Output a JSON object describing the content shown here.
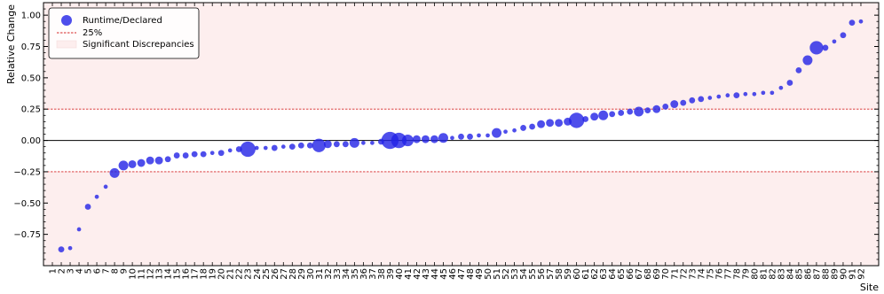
{
  "chart_data": {
    "type": "scatter",
    "xlabel": "Site",
    "ylabel": "Relative Change",
    "ylim": [
      -1.0,
      1.1
    ],
    "xlim": [
      0,
      94
    ],
    "yticks": [
      -0.75,
      -0.5,
      -0.25,
      0.0,
      0.25,
      0.5,
      0.75,
      1.0
    ],
    "ytick_labels": [
      "−0.75",
      "−0.50",
      "−0.25",
      "0.00",
      "0.25",
      "0.50",
      "0.75",
      "1.00"
    ],
    "x_categories": [
      "1",
      "2",
      "3",
      "4",
      "5",
      "6",
      "7",
      "8",
      "9",
      "10",
      "11",
      "12",
      "13",
      "14",
      "15",
      "16",
      "17",
      "18",
      "19",
      "20",
      "21",
      "22",
      "23",
      "24",
      "25",
      "26",
      "27",
      "28",
      "29",
      "30",
      "31",
      "32",
      "33",
      "34",
      "35",
      "36",
      "37",
      "38",
      "39",
      "40",
      "41",
      "42",
      "43",
      "44",
      "45",
      "46",
      "47",
      "48",
      "49",
      "50",
      "51",
      "52",
      "53",
      "54",
      "55",
      "56",
      "57",
      "58",
      "59",
      "60",
      "61",
      "62",
      "63",
      "64",
      "65",
      "66",
      "67",
      "68",
      "69",
      "70",
      "71",
      "72",
      "73",
      "74",
      "75",
      "76",
      "77",
      "78",
      "79",
      "80",
      "81",
      "82",
      "83",
      "84",
      "85",
      "86",
      "87",
      "88",
      "89",
      "90",
      "91",
      "92"
    ],
    "threshold": 0.25,
    "grid": false,
    "legend_position": "top-left",
    "legend": [
      {
        "label": "Runtime/Declared",
        "kind": "marker"
      },
      {
        "label": "25%",
        "kind": "line"
      },
      {
        "label": "Significant Discrepancies",
        "kind": "patch"
      }
    ],
    "colors": {
      "points": "#2222e6",
      "threshold": "#d62728",
      "significant_fill": "#fdeeee",
      "zero_line": "#000000"
    },
    "series": [
      {
        "name": "Runtime/Declared",
        "x": [
          2,
          3,
          4,
          5,
          6,
          7,
          8,
          9,
          10,
          11,
          12,
          13,
          14,
          15,
          16,
          17,
          18,
          19,
          20,
          21,
          22,
          23,
          24,
          25,
          26,
          27,
          28,
          29,
          30,
          31,
          32,
          33,
          34,
          35,
          36,
          37,
          38,
          39,
          40,
          41,
          42,
          43,
          44,
          45,
          46,
          47,
          48,
          49,
          50,
          51,
          52,
          53,
          54,
          55,
          56,
          57,
          58,
          59,
          60,
          61,
          62,
          63,
          64,
          65,
          66,
          67,
          68,
          69,
          70,
          71,
          72,
          73,
          74,
          75,
          76,
          77,
          78,
          79,
          80,
          81,
          82,
          83,
          84,
          85,
          86,
          87,
          88,
          89,
          90,
          91,
          92
        ],
        "y": [
          -0.87,
          -0.86,
          -0.71,
          -0.53,
          -0.45,
          -0.37,
          -0.26,
          -0.2,
          -0.19,
          -0.18,
          -0.16,
          -0.16,
          -0.15,
          -0.12,
          -0.12,
          -0.11,
          -0.11,
          -0.1,
          -0.1,
          -0.08,
          -0.07,
          -0.07,
          -0.06,
          -0.06,
          -0.06,
          -0.05,
          -0.05,
          -0.04,
          -0.04,
          -0.04,
          -0.03,
          -0.03,
          -0.03,
          -0.02,
          -0.02,
          -0.02,
          -0.01,
          0.0,
          0.0,
          0.0,
          0.01,
          0.01,
          0.01,
          0.02,
          0.02,
          0.03,
          0.03,
          0.04,
          0.04,
          0.06,
          0.07,
          0.08,
          0.1,
          0.11,
          0.13,
          0.14,
          0.14,
          0.15,
          0.16,
          0.17,
          0.19,
          0.2,
          0.21,
          0.22,
          0.23,
          0.23,
          0.24,
          0.25,
          0.27,
          0.29,
          0.3,
          0.32,
          0.33,
          0.34,
          0.35,
          0.36,
          0.36,
          0.37,
          0.37,
          0.38,
          0.38,
          0.42,
          0.46,
          0.56,
          0.64,
          0.74,
          0.74,
          0.79,
          0.84,
          0.94,
          0.95
        ],
        "size": [
          2,
          1,
          1,
          2,
          1,
          1,
          4,
          4,
          3,
          3,
          3,
          3,
          2,
          2,
          2,
          2,
          2,
          1,
          2,
          1,
          2,
          7,
          1,
          1,
          2,
          1,
          2,
          2,
          2,
          6,
          3,
          2,
          2,
          4,
          1,
          1,
          2,
          8,
          7,
          5,
          3,
          3,
          3,
          4,
          1,
          2,
          2,
          1,
          1,
          4,
          1,
          1,
          2,
          2,
          3,
          3,
          3,
          3,
          7,
          2,
          3,
          4,
          2,
          2,
          2,
          4,
          2,
          3,
          2,
          3,
          2,
          2,
          2,
          1,
          1,
          1,
          2,
          1,
          1,
          1,
          1,
          1,
          2,
          2,
          4,
          6,
          2,
          1,
          2,
          2,
          1
        ]
      }
    ]
  }
}
